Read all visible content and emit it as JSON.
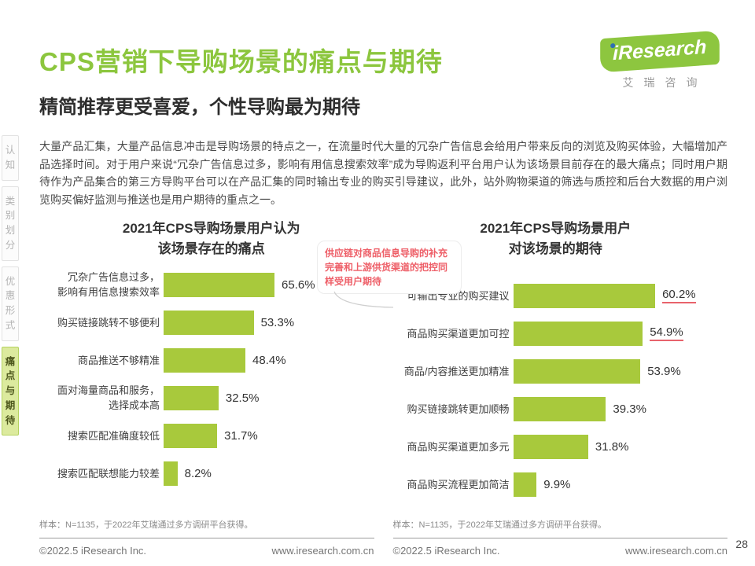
{
  "header": {
    "title": "CPS营销下导购场景的痛点与期待",
    "subtitle": "精简推荐更受喜爱，个性导购最为期待"
  },
  "logo": {
    "brand": "iResearch",
    "brand_cn": "艾瑞咨询"
  },
  "sidebar": {
    "items": [
      {
        "label": "认知",
        "active": false
      },
      {
        "label": "类别划分",
        "active": false
      },
      {
        "label": "优惠形式",
        "active": false
      },
      {
        "label": "痛点与期待",
        "active": true
      }
    ]
  },
  "intro": "大量产品汇集，大量产品信息冲击是导购场景的特点之一，在流量时代大量的冗杂广告信息会给用户带来反向的浏览及购买体验，大幅增加产品选择时间。对于用户来说“冗杂广告信息过多，影响有用信息搜索效率”成为导购返利平台用户认为该场景目前存在的最大痛点；同时用户期待作为产品集合的第三方导购平台可以在产品汇集的同时输出专业的购买引导建议，此外，站外购物渠道的筛选与质控和后台大数据的用户浏览购买偏好监测与推送也是用户期待的重点之一。",
  "annotation": "供应链对商品信息导购的补充完善和上游供货渠道的把控同样受用户期待",
  "chart_data": [
    {
      "type": "bar",
      "orientation": "horizontal",
      "title": "2021年CPS导购场景用户认为\n该场景存在的痛点",
      "categories": [
        "冗杂广告信息过多，\n影响有用信息搜索效率",
        "购买链接跳转不够便利",
        "商品推送不够精准",
        "面对海量商品和服务，\n选择成本高",
        "搜索匹配准确度较低",
        "搜索匹配联想能力较差"
      ],
      "values": [
        65.6,
        53.3,
        48.4,
        32.5,
        31.7,
        8.2
      ],
      "value_labels": [
        "65.6%",
        "53.3%",
        "48.4%",
        "32.5%",
        "31.7%",
        "8.2%"
      ],
      "highlight_indices": [],
      "xlim": [
        0,
        100
      ],
      "bar_color": "#a8c93c",
      "legend": "none",
      "grid": false,
      "footnote": "样本：N=1135，于2022年艾瑞通过多方调研平台获得。"
    },
    {
      "type": "bar",
      "orientation": "horizontal",
      "title": "2021年CPS导购场景用户\n对该场景的期待",
      "categories": [
        "可输出专业的购买建议",
        "商品购买渠道更加可控",
        "商品/内容推送更加精准",
        "购买链接跳转更加顺畅",
        "商品购买渠道更加多元",
        "商品购买流程更加简洁"
      ],
      "values": [
        60.2,
        54.9,
        53.9,
        39.3,
        31.8,
        9.9
      ],
      "value_labels": [
        "60.2%",
        "54.9%",
        "53.9%",
        "39.3%",
        "31.8%",
        "9.9%"
      ],
      "highlight_indices": [
        0,
        1
      ],
      "xlim": [
        0,
        100
      ],
      "bar_color": "#a8c93c",
      "legend": "none",
      "grid": false,
      "footnote": "样本：N=1135，于2022年艾瑞通过多方调研平台获得。"
    }
  ],
  "footer": {
    "copyright": "©2022.5 iResearch Inc.",
    "website": "www.iresearch.com.cn",
    "page_number": "28"
  },
  "colors": {
    "brand_green": "#8cc63e",
    "bar_green": "#a8c93c",
    "annotation_red": "#ee5f68",
    "highlight_underline": "#e8636c"
  }
}
